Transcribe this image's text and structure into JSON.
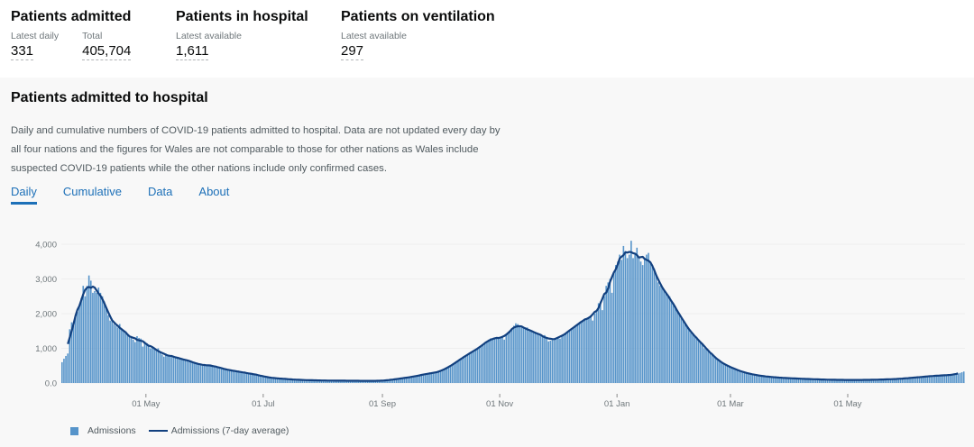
{
  "headlines": [
    {
      "title": "Patients admitted",
      "metrics": [
        {
          "label": "Latest daily",
          "value": "331"
        },
        {
          "label": "Total",
          "value": "405,704"
        }
      ]
    },
    {
      "title": "Patients in hospital",
      "metrics": [
        {
          "label": "Latest available",
          "value": "1,611"
        }
      ]
    },
    {
      "title": "Patients on ventilation",
      "metrics": [
        {
          "label": "Latest available",
          "value": "297"
        }
      ]
    }
  ],
  "section": {
    "title": "Patients admitted to hospital",
    "description": "Daily and cumulative numbers of COVID-19 patients admitted to hospital. Data are not updated every day by all four nations and the figures for Wales are not comparable to those for other nations as Wales include suspected COVID-19 patients while the other nations include only confirmed cases.",
    "tabs": [
      {
        "label": "Daily",
        "active": true
      },
      {
        "label": "Cumulative"
      },
      {
        "label": "Data"
      },
      {
        "label": "About"
      }
    ]
  },
  "chart_data": {
    "type": "bar",
    "x_range": [
      "2020-03-18",
      "2021-06-30"
    ],
    "ylim": [
      0,
      4000
    ],
    "grid": true,
    "yticks": [
      "0.0",
      "1,000",
      "2,000",
      "3,000",
      "4,000"
    ],
    "xticks": [
      {
        "label": "01 May",
        "date": "2020-05-01"
      },
      {
        "label": "01 Jul",
        "date": "2020-07-01"
      },
      {
        "label": "01 Sep",
        "date": "2020-09-01"
      },
      {
        "label": "01 Nov",
        "date": "2020-11-01"
      },
      {
        "label": "01 Jan",
        "date": "2021-01-01"
      },
      {
        "label": "01 Mar",
        "date": "2021-03-01"
      },
      {
        "label": "01 May",
        "date": "2021-05-01"
      }
    ],
    "legend": {
      "position": "bottom-left",
      "items": [
        "Admissions",
        "Admissions (7-day average)"
      ]
    },
    "colors": {
      "bars": "#5694ca",
      "line": "#12407f"
    },
    "series": [
      {
        "name": "Admissions",
        "type": "bar",
        "values": [
          600,
          700,
          780,
          850,
          1550,
          1750,
          1650,
          1900,
          2050,
          2200,
          2450,
          2800,
          2500,
          2800,
          3100,
          2950,
          2600,
          2650,
          2600,
          2750,
          2600,
          2500,
          2350,
          2150,
          1950,
          1800,
          1850,
          1700,
          1650,
          1600,
          1700,
          1550,
          1500,
          1450,
          1400,
          1350,
          1300,
          1250,
          1180,
          1350,
          1300,
          1280,
          1050,
          1200,
          1150,
          1100,
          1000,
          1050,
          980,
          950,
          1000,
          900,
          820,
          760,
          850,
          800,
          780,
          800,
          760,
          740,
          720,
          700,
          690,
          700,
          680,
          650,
          620,
          640,
          600,
          580,
          560,
          540,
          520,
          500,
          540,
          520,
          500,
          510,
          500,
          490,
          480,
          460,
          440,
          420,
          400,
          420,
          380,
          360,
          370,
          350,
          340,
          330,
          340,
          320,
          300,
          310,
          280,
          270,
          280,
          260,
          250,
          240,
          230,
          220,
          210,
          180,
          170,
          160,
          160,
          150,
          150,
          140,
          130,
          135,
          125,
          120,
          118,
          115,
          110,
          105,
          100,
          98,
          95,
          92,
          90,
          88,
          85,
          84,
          82,
          80,
          80,
          78,
          76,
          75,
          74,
          74,
          72,
          72,
          70,
          70,
          70,
          69,
          68,
          68,
          68,
          67,
          67,
          66,
          66,
          65,
          65,
          65,
          64,
          64,
          64,
          63,
          63,
          63,
          62,
          62,
          62,
          62,
          62,
          63,
          64,
          65,
          66,
          68,
          72,
          78,
          85,
          92,
          100,
          108,
          115,
          122,
          130,
          138,
          145,
          152,
          160,
          168,
          178,
          188,
          198,
          208,
          220,
          232,
          245,
          258,
          270,
          285,
          275,
          290,
          300,
          310,
          320,
          340,
          370,
          400,
          430,
          460,
          490,
          520,
          560,
          600,
          640,
          680,
          720,
          760,
          780,
          820,
          860,
          880,
          920,
          960,
          990,
          1020,
          1060,
          1100,
          1150,
          1200,
          1250,
          1290,
          1270,
          1300,
          1280,
          1300,
          1320,
          1350,
          1250,
          1380,
          1420,
          1480,
          1560,
          1650,
          1720,
          1700,
          1650,
          1600,
          1580,
          1560,
          1600,
          1500,
          1520,
          1450,
          1480,
          1420,
          1380,
          1400,
          1350,
          1380,
          1300,
          1200,
          1220,
          1250,
          1280,
          1300,
          1320,
          1280,
          1350,
          1400,
          1430,
          1470,
          1520,
          1560,
          1600,
          1640,
          1680,
          1720,
          1760,
          1800,
          1850,
          1880,
          1900,
          1950,
          1800,
          2000,
          2050,
          2300,
          2350,
          2100,
          2500,
          2800,
          2900,
          3000,
          2600,
          3200,
          3400,
          3500,
          3700,
          3550,
          3950,
          3800,
          3600,
          3700,
          4100,
          3600,
          3700,
          3900,
          3600,
          3500,
          3400,
          3600,
          3700,
          3750,
          3500,
          3400,
          3300,
          3100,
          2900,
          2800,
          2750,
          2700,
          2600,
          2550,
          2500,
          2350,
          2250,
          2150,
          2100,
          2000,
          1900,
          1800,
          1700,
          1650,
          1550,
          1450,
          1400,
          1350,
          1300,
          1250,
          1200,
          1150,
          1000,
          1000,
          950,
          880,
          820,
          780,
          720,
          680,
          620,
          580,
          560,
          530,
          500,
          480,
          450,
          430,
          400,
          380,
          360,
          340,
          320,
          300,
          290,
          280,
          260,
          250,
          240,
          230,
          220,
          210,
          200,
          195,
          190,
          185,
          180,
          175,
          170,
          165,
          160,
          155,
          150,
          148,
          145,
          142,
          140,
          138,
          135,
          132,
          130,
          128,
          125,
          122,
          120,
          118,
          116,
          114,
          112,
          110,
          108,
          106,
          104,
          102,
          100,
          98,
          96,
          95,
          94,
          93,
          92,
          92,
          91,
          90,
          90,
          89,
          89,
          88,
          88,
          88,
          88,
          88,
          88,
          89,
          89,
          90,
          90,
          91,
          92,
          93,
          94,
          95,
          96,
          98,
          100,
          102,
          104,
          106,
          108,
          110,
          112,
          114,
          116,
          120,
          124,
          128,
          132,
          136,
          140,
          145,
          150,
          155,
          160,
          165,
          170,
          175,
          180,
          185,
          190,
          195,
          200,
          204,
          208,
          212,
          215,
          218,
          220,
          222,
          225,
          228,
          232,
          238,
          245,
          255,
          270,
          290,
          310,
          331
        ]
      },
      {
        "name": "Admissions (7-day average)",
        "type": "line",
        "derived_from": "Admissions"
      }
    ]
  }
}
